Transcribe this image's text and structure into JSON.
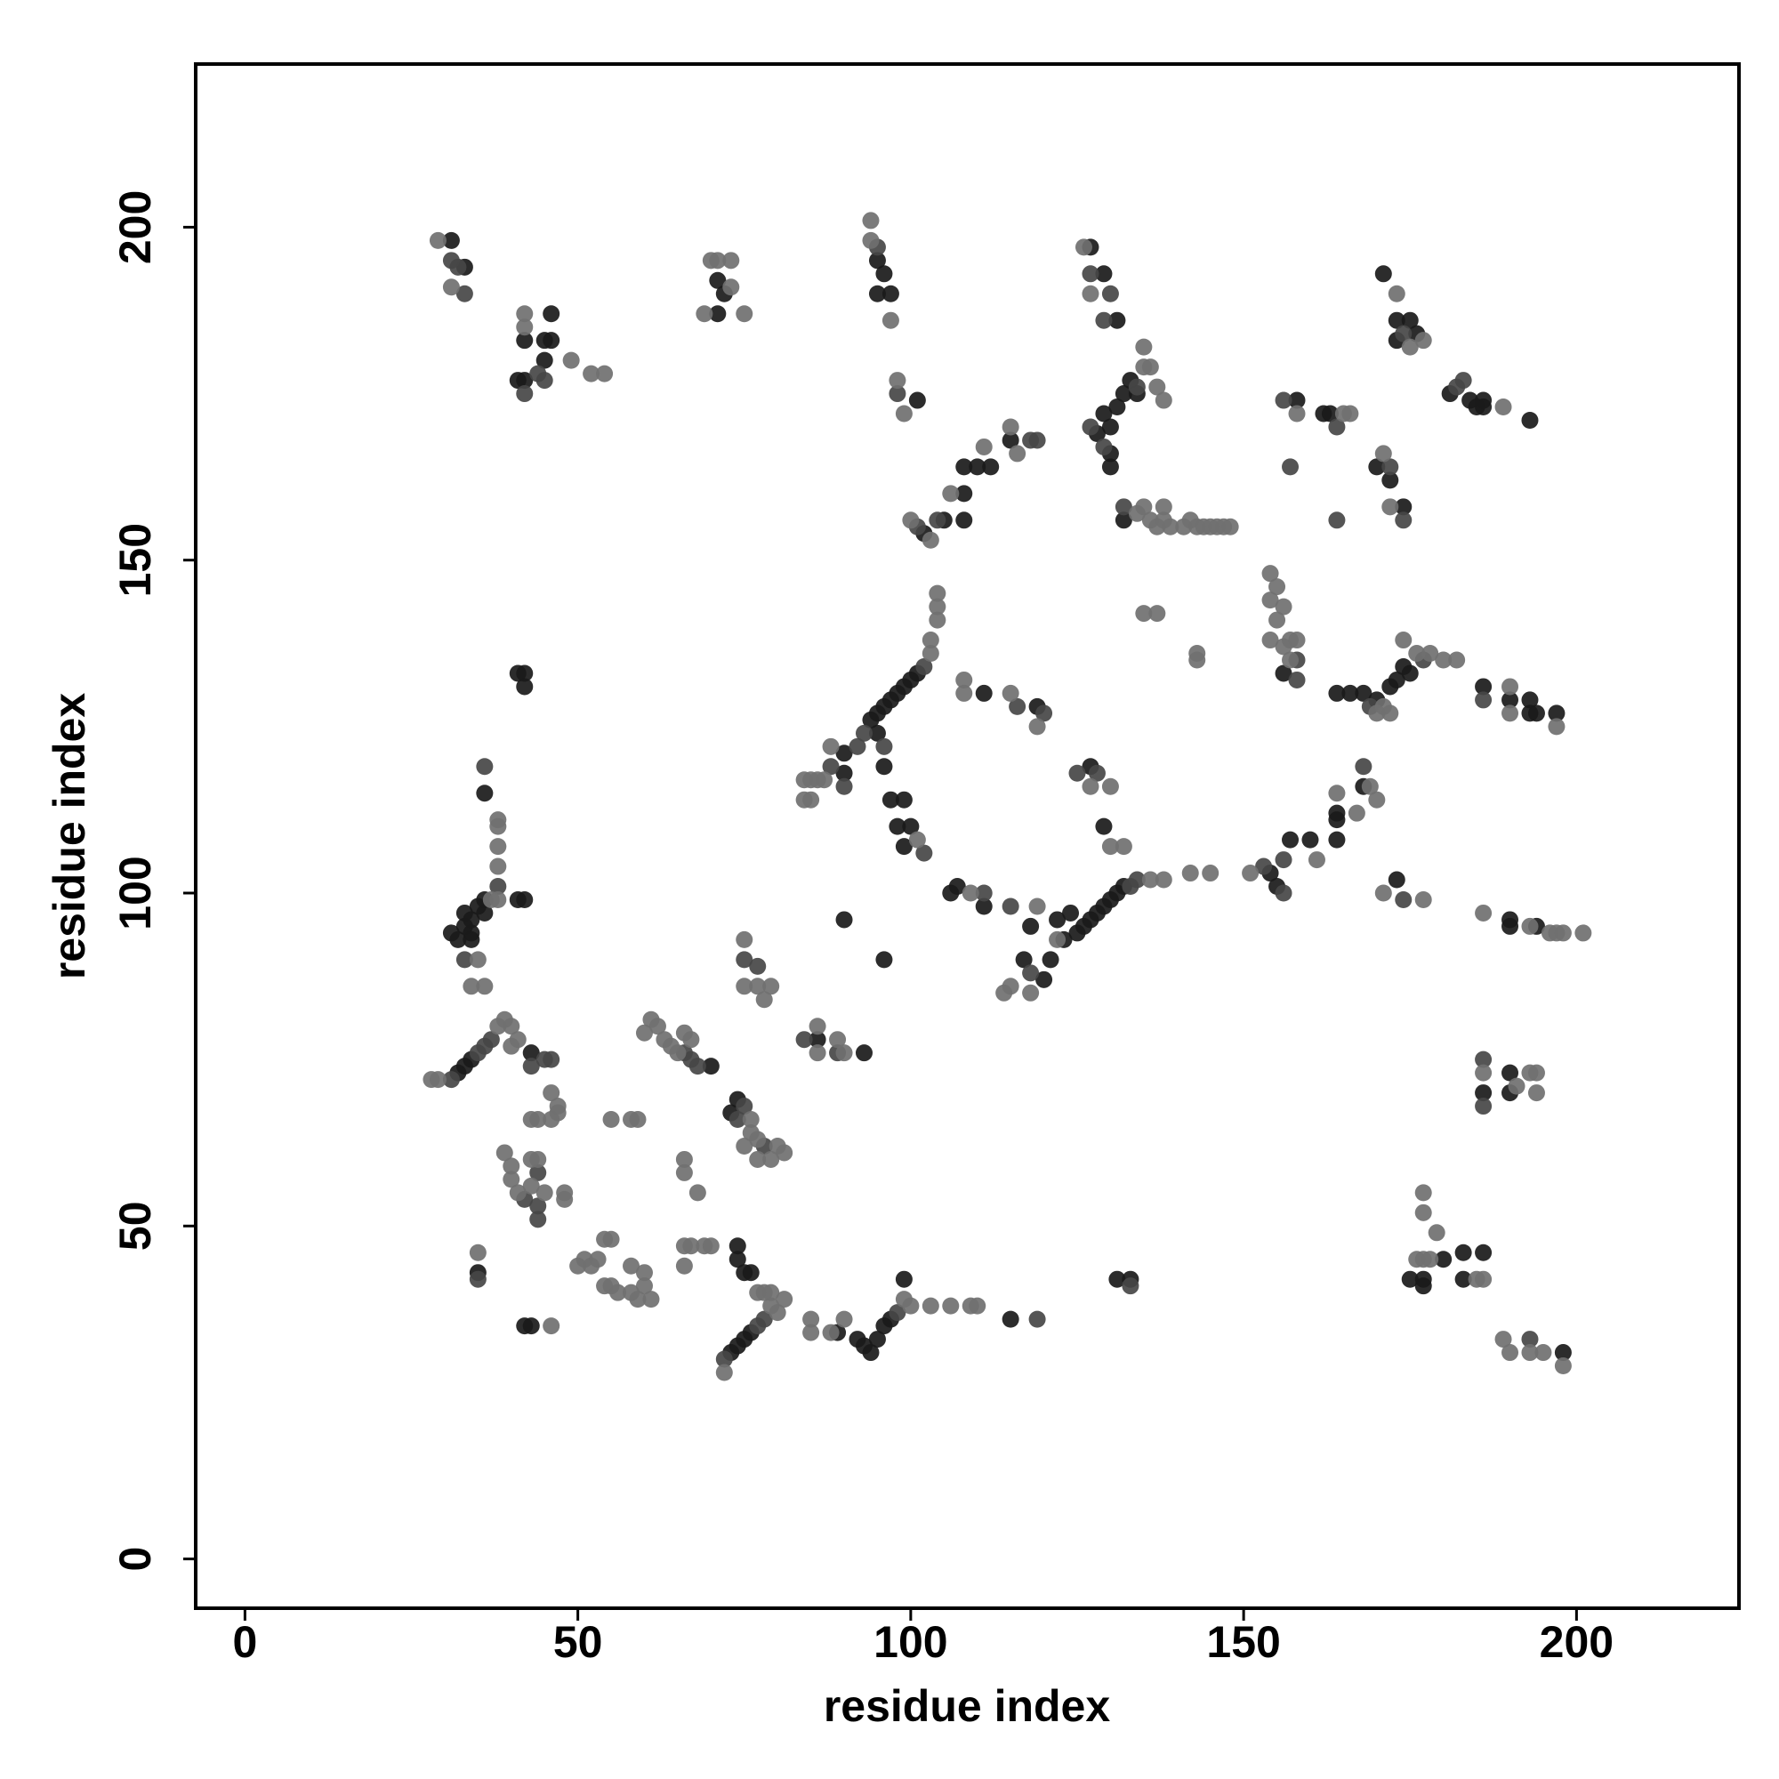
{
  "chart_data": {
    "type": "scatter",
    "xlabel": "residue index",
    "ylabel": "residue index",
    "xlim": [
      -7.4,
      224.4
    ],
    "ylim": [
      -7.4,
      224.5
    ],
    "xticks": [
      0,
      50,
      100,
      150,
      200
    ],
    "yticks": [
      0,
      50,
      100,
      150,
      200
    ],
    "grid": false,
    "series": [
      {
        "color": "#1a1a1a",
        "x": [
          31,
          33,
          46,
          42,
          45,
          46,
          45,
          41,
          42,
          71,
          71,
          72,
          95,
          96,
          95,
          97,
          101,
          102,
          105,
          108,
          108,
          108,
          110,
          112,
          115,
          127,
          129,
          131,
          128,
          129,
          130,
          131,
          132,
          133,
          130,
          130,
          134,
          132,
          171,
          173,
          175,
          173,
          176,
          181,
          184,
          185,
          186,
          186,
          193,
          158,
          162,
          163,
          170,
          172,
          174,
          156,
          164,
          166,
          168,
          170,
          172,
          173,
          174,
          175,
          186,
          190,
          193,
          193,
          194,
          197,
          94,
          95,
          96,
          97,
          98,
          99,
          100,
          101,
          90,
          95,
          96,
          90,
          111,
          119,
          97,
          99,
          98,
          100,
          99,
          127,
          129,
          123,
          125,
          126,
          127,
          128,
          129,
          130,
          131,
          132,
          124,
          122,
          118,
          117,
          121,
          120,
          106,
          107,
          111,
          154,
          155,
          157,
          160,
          164,
          164,
          164,
          168,
          173,
          190,
          190,
          194,
          186,
          190,
          190,
          180,
          183,
          186,
          175,
          177,
          177,
          183,
          198,
          131,
          133,
          32,
          33,
          34,
          43,
          31,
          32,
          33,
          34,
          33,
          34,
          35,
          36,
          36,
          34,
          36,
          41,
          42,
          41,
          42,
          42,
          42,
          43,
          35,
          70,
          73,
          74,
          73,
          74,
          75,
          76,
          74,
          74,
          75,
          76,
          89,
          92,
          93,
          94,
          95,
          96,
          97,
          99,
          115,
          86,
          93,
          90,
          96
        ],
        "values": [
          198,
          194,
          187,
          183,
          183,
          183,
          180,
          177,
          177,
          192,
          187,
          190,
          195,
          193,
          190,
          190,
          174,
          154,
          156,
          160,
          156,
          164,
          164,
          164,
          168,
          197,
          193,
          186,
          169,
          172,
          170,
          173,
          175,
          177,
          164,
          166,
          175,
          156,
          193,
          186,
          186,
          183,
          184,
          175,
          174,
          173,
          174,
          173,
          171,
          174,
          172,
          172,
          164,
          162,
          158,
          133,
          130,
          130,
          130,
          129,
          131,
          132,
          134,
          133,
          131,
          129,
          129,
          127,
          127,
          127,
          126,
          127,
          128,
          129,
          130,
          131,
          132,
          133,
          121,
          124,
          119,
          118,
          130,
          128,
          114,
          114,
          110,
          110,
          107,
          119,
          110,
          93,
          94,
          95,
          96,
          97,
          98,
          99,
          100,
          101,
          97,
          96,
          95,
          90,
          90,
          87,
          100,
          101,
          98,
          103,
          101,
          108,
          108,
          108,
          112,
          111,
          116,
          102,
          96,
          95,
          95,
          70,
          73,
          70,
          45,
          46,
          46,
          42,
          42,
          41,
          42,
          31,
          42,
          42,
          73,
          74,
          75,
          76,
          94,
          93,
          95,
          94,
          97,
          96,
          98,
          99,
          97,
          93,
          115,
          99,
          99,
          133,
          133,
          131,
          35,
          35,
          43,
          74,
          67,
          69,
          31,
          32,
          33,
          34,
          47,
          45,
          43,
          43,
          34,
          33,
          32,
          31,
          33,
          35,
          36,
          42,
          36,
          78,
          76,
          96,
          90
        ]
      },
      {
        "color": "#464646",
        "x": [
          31,
          32,
          33,
          44,
          45,
          42,
          95,
          98,
          101,
          104,
          118,
          119,
          127,
          130,
          129,
          127,
          134,
          129,
          132,
          174,
          182,
          183,
          156,
          164,
          157,
          164,
          172,
          174,
          158,
          158,
          169,
          177,
          186,
          102,
          93,
          92,
          96,
          88,
          90,
          116,
          120,
          102,
          125,
          128,
          133,
          134,
          115,
          118,
          111,
          153,
          156,
          156,
          168,
          174,
          186,
          186,
          193,
          133,
          31,
          35,
          36,
          37,
          45,
          46,
          43,
          33,
          38,
          36,
          42,
          44,
          44,
          44,
          35,
          67,
          68,
          66,
          74,
          75,
          78,
          75,
          77,
          72,
          77,
          78,
          98,
          119,
          84,
          89
        ],
        "values": [
          195,
          194,
          190,
          178,
          177,
          175,
          197,
          175,
          155,
          156,
          168,
          168,
          193,
          190,
          186,
          170,
          176,
          167,
          158,
          184,
          176,
          177,
          174,
          170,
          164,
          156,
          164,
          156,
          135,
          132,
          128,
          135,
          129,
          134,
          124,
          122,
          122,
          119,
          116,
          128,
          127,
          106,
          118,
          118,
          101,
          102,
          98,
          88,
          100,
          104,
          105,
          100,
          119,
          99,
          75,
          68,
          33,
          41,
          72,
          76,
          77,
          78,
          75,
          75,
          74,
          90,
          101,
          119,
          54,
          58,
          53,
          51,
          42,
          75,
          74,
          76,
          66,
          68,
          62,
          90,
          89,
          30,
          35,
          36,
          37,
          36,
          78,
          76
        ]
      },
      {
        "color": "#707070",
        "x": [
          29,
          31,
          42,
          42,
          49,
          52,
          54,
          70,
          71,
          73,
          73,
          69,
          75,
          94,
          94,
          97,
          98,
          99,
          100,
          103,
          106,
          111,
          115,
          116,
          126,
          127,
          135,
          135,
          136,
          137,
          138,
          134,
          135,
          136,
          137,
          138,
          138,
          139,
          141,
          142,
          143,
          144,
          145,
          146,
          147,
          148,
          173,
          175,
          177,
          189,
          158,
          165,
          166,
          171,
          172,
          154,
          155,
          154,
          156,
          155,
          154,
          156,
          157,
          158,
          157,
          135,
          137,
          143,
          143,
          171,
          176,
          178,
          180,
          182,
          174,
          170,
          172,
          190,
          190,
          197,
          103,
          103,
          104,
          104,
          104,
          88,
          84,
          85,
          86,
          87,
          84,
          85,
          108,
          108,
          115,
          119,
          101,
          127,
          130,
          130,
          132,
          136,
          138,
          142,
          145,
          119,
          114,
          115,
          118,
          122,
          109,
          151,
          161,
          164,
          167,
          169,
          170,
          171,
          177,
          186,
          193,
          196,
          197,
          198,
          201,
          186,
          191,
          193,
          194,
          194,
          177,
          177,
          179,
          176,
          177,
          178,
          185,
          186,
          189,
          190,
          193,
          195,
          198,
          28,
          29,
          38,
          39,
          40,
          41,
          40,
          35,
          34,
          36,
          37,
          38,
          38,
          38,
          38,
          38,
          39,
          40,
          40,
          41,
          43,
          43,
          44,
          43,
          44,
          45,
          46,
          47,
          46,
          47,
          48,
          48,
          46,
          35,
          50,
          51,
          52,
          53,
          54,
          55,
          54,
          55,
          56,
          58,
          58,
          59,
          60,
          60,
          61,
          55,
          58,
          59,
          60,
          61,
          62,
          63,
          64,
          65,
          66,
          67,
          66,
          66,
          68,
          66,
          67,
          69,
          70,
          66,
          76,
          76,
          77,
          77,
          79,
          80,
          81,
          75,
          75,
          75,
          77,
          78,
          79,
          72,
          79,
          81,
          80,
          77,
          78,
          79,
          85,
          85,
          88,
          90,
          99,
          100,
          103,
          106,
          109,
          110,
          86,
          86,
          89,
          90
        ],
        "values": [
          198,
          191,
          187,
          185,
          180,
          178,
          178,
          195,
          195,
          195,
          191,
          187,
          187,
          201,
          198,
          186,
          177,
          172,
          156,
          153,
          160,
          167,
          170,
          166,
          197,
          190,
          179,
          182,
          179,
          176,
          174,
          157,
          158,
          156,
          155,
          158,
          156,
          155,
          155,
          156,
          155,
          155,
          155,
          155,
          155,
          155,
          190,
          182,
          183,
          173,
          172,
          172,
          172,
          166,
          158,
          148,
          146,
          144,
          143,
          141,
          138,
          137,
          138,
          138,
          135,
          142,
          142,
          136,
          135,
          128,
          136,
          136,
          135,
          135,
          138,
          127,
          127,
          131,
          127,
          125,
          136,
          138,
          141,
          143,
          145,
          122,
          117,
          117,
          117,
          117,
          114,
          114,
          132,
          130,
          130,
          125,
          108,
          116,
          116,
          107,
          107,
          102,
          102,
          103,
          103,
          98,
          85,
          86,
          85,
          93,
          100,
          103,
          105,
          115,
          112,
          116,
          114,
          100,
          99,
          97,
          95,
          94,
          94,
          94,
          94,
          73,
          71,
          73,
          73,
          70,
          55,
          52,
          49,
          45,
          45,
          45,
          42,
          42,
          33,
          31,
          31,
          31,
          29,
          72,
          72,
          80,
          81,
          80,
          78,
          77,
          90,
          86,
          86,
          99,
          99,
          104,
          107,
          110,
          111,
          61,
          59,
          57,
          55,
          56,
          60,
          60,
          66,
          66,
          55,
          70,
          68,
          66,
          67,
          55,
          54,
          35,
          46,
          44,
          45,
          44,
          45,
          48,
          48,
          41,
          41,
          40,
          44,
          40,
          39,
          43,
          41,
          39,
          66,
          66,
          66,
          79,
          81,
          80,
          78,
          77,
          76,
          79,
          78,
          60,
          58,
          55,
          47,
          47,
          47,
          47,
          44,
          66,
          64,
          63,
          60,
          60,
          62,
          61,
          62,
          93,
          86,
          86,
          84,
          86,
          28,
          38,
          39,
          37,
          40,
          40,
          40,
          36,
          34,
          34,
          36,
          39,
          38,
          38,
          38,
          38,
          38,
          80,
          76,
          78,
          76
        ]
      }
    ]
  }
}
